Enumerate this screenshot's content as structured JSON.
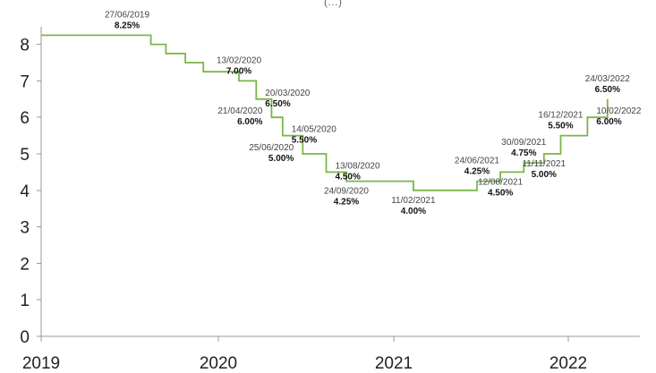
{
  "chart_data": {
    "type": "line",
    "title_fragment": "(…)",
    "ylim": [
      0,
      8.5
    ],
    "xlim": [
      "2019-01-01",
      "2022-06-01"
    ],
    "yticks": [
      "0",
      "1",
      "2",
      "3",
      "4",
      "5",
      "6",
      "7",
      "8"
    ],
    "xticks": [
      {
        "date": "2019-01-01",
        "label": "2019"
      },
      {
        "date": "2020-01-01",
        "label": "2020"
      },
      {
        "date": "2021-01-01",
        "label": "2021"
      },
      {
        "date": "2022-01-01",
        "label": "2022"
      }
    ],
    "line_color": "#7ab648",
    "grid": false,
    "series": [
      {
        "points": [
          {
            "x": "2019-01-01",
            "y": 8.25
          },
          {
            "x": "2019-08-15",
            "y": 8.0
          },
          {
            "x": "2019-09-15",
            "y": 7.75
          },
          {
            "x": "2019-10-25",
            "y": 7.5
          },
          {
            "x": "2019-12-01",
            "y": 7.25
          },
          {
            "x": "2020-02-13",
            "y": 7.0
          },
          {
            "x": "2020-03-20",
            "y": 6.5
          },
          {
            "x": "2020-04-21",
            "y": 6.0
          },
          {
            "x": "2020-05-14",
            "y": 5.5
          },
          {
            "x": "2020-06-25",
            "y": 5.0
          },
          {
            "x": "2020-08-13",
            "y": 4.5
          },
          {
            "x": "2020-09-24",
            "y": 4.25
          },
          {
            "x": "2021-02-11",
            "y": 4.0
          },
          {
            "x": "2021-06-24",
            "y": 4.25
          },
          {
            "x": "2021-08-12",
            "y": 4.5
          },
          {
            "x": "2021-09-30",
            "y": 4.75
          },
          {
            "x": "2021-11-11",
            "y": 5.0
          },
          {
            "x": "2021-12-16",
            "y": 5.5
          },
          {
            "x": "2022-02-10",
            "y": 6.0
          },
          {
            "x": "2022-03-24",
            "y": 6.5
          }
        ]
      }
    ],
    "annotations": [
      {
        "date": "27/06/2019",
        "rate": "8.25%",
        "pos": "above"
      },
      {
        "date": "13/02/2020",
        "rate": "7.00%",
        "pos": "above"
      },
      {
        "date": "20/03/2020",
        "rate": "6.50%",
        "pos": "right"
      },
      {
        "date": "21/04/2020",
        "rate": "6.00%",
        "pos": "left"
      },
      {
        "date": "14/05/2020",
        "rate": "5.50%",
        "pos": "right"
      },
      {
        "date": "25/06/2020",
        "rate": "5.00%",
        "pos": "left"
      },
      {
        "date": "13/08/2020",
        "rate": "4.50%",
        "pos": "right"
      },
      {
        "date": "24/09/2020",
        "rate": "4.25%",
        "pos": "below"
      },
      {
        "date": "11/02/2021",
        "rate": "4.00%",
        "pos": "below"
      },
      {
        "date": "24/06/2021",
        "rate": "4.25%",
        "pos": "above"
      },
      {
        "date": "12/08/2021",
        "rate": "4.50%",
        "pos": "below"
      },
      {
        "date": "30/09/2021",
        "rate": "4.75%",
        "pos": "above"
      },
      {
        "date": "11/11/2021",
        "rate": "5.00%",
        "pos": "below"
      },
      {
        "date": "16/12/2021",
        "rate": "5.50%",
        "pos": "above"
      },
      {
        "date": "10/02/2022",
        "rate": "6.00%",
        "pos": "right"
      },
      {
        "date": "24/03/2022",
        "rate": "6.50%",
        "pos": "above"
      }
    ]
  }
}
